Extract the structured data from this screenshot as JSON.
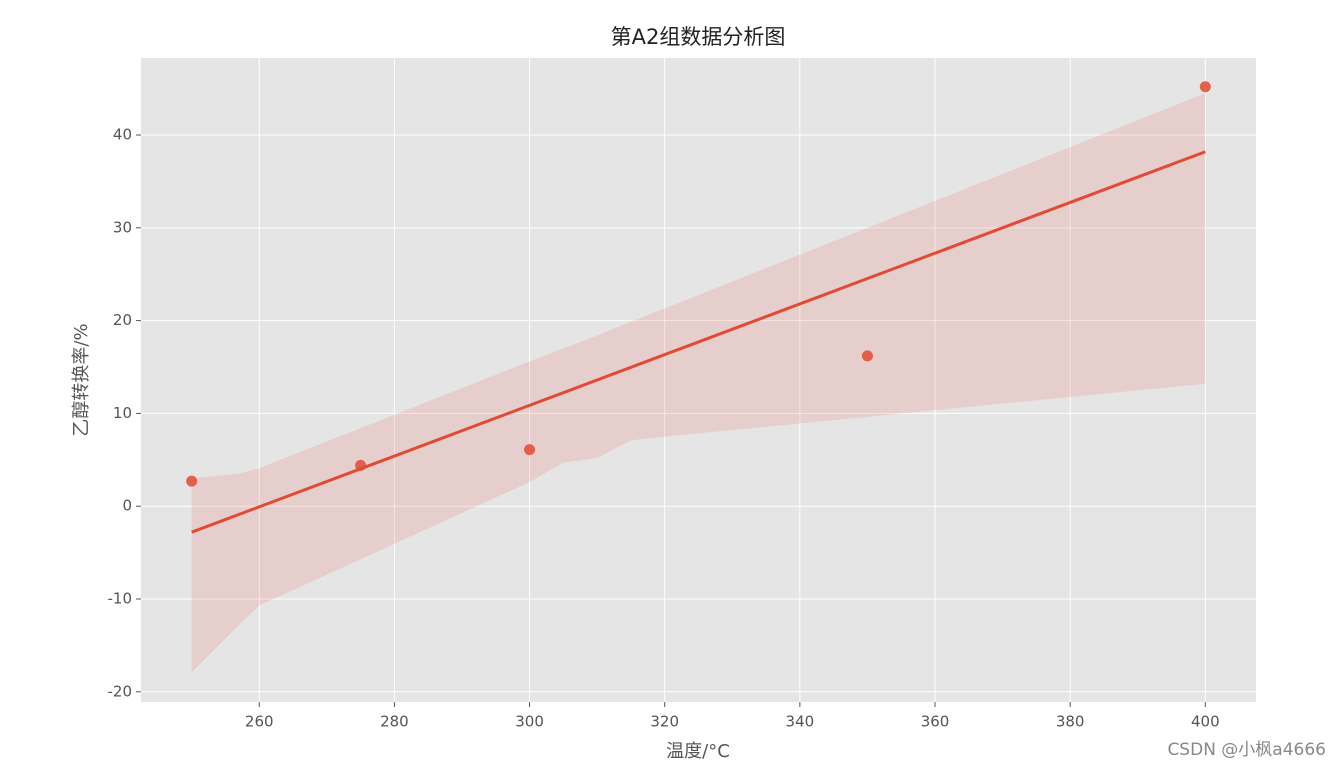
{
  "chart_data": {
    "type": "scatter",
    "title": "第A2组数据分析图",
    "x_label": "温度/°C",
    "y_label": "乙醇转换率/%",
    "x": [
      250,
      275,
      300,
      350,
      400
    ],
    "series": [
      {
        "color": "#e24a33",
        "values": [
          2.7,
          4.4,
          6.1,
          16.2,
          45.2
        ]
      }
    ],
    "fit_line": {
      "x": [
        250,
        400
      ],
      "y": [
        -2.8,
        38.2
      ]
    },
    "confidence_band": {
      "x": [
        250,
        257,
        260,
        300,
        305,
        310,
        315,
        320,
        400
      ],
      "upper": [
        3.0,
        3.5,
        4.1,
        15.6,
        17.0,
        18.4,
        19.9,
        21.3,
        44.5
      ],
      "lower": [
        -17.9,
        -12.8,
        -10.7,
        2.6,
        4.7,
        5.2,
        7.1,
        7.5,
        13.2
      ]
    },
    "xlim": [
      242.5,
      407.5
    ],
    "ylim": [
      -21.1,
      48.3
    ],
    "xticks": [
      260,
      280,
      300,
      320,
      340,
      360,
      380,
      400
    ],
    "yticks": [
      -20,
      -10,
      0,
      10,
      20,
      30,
      40
    ],
    "grid": true,
    "watermark": "CSDN @小枫a4666"
  }
}
